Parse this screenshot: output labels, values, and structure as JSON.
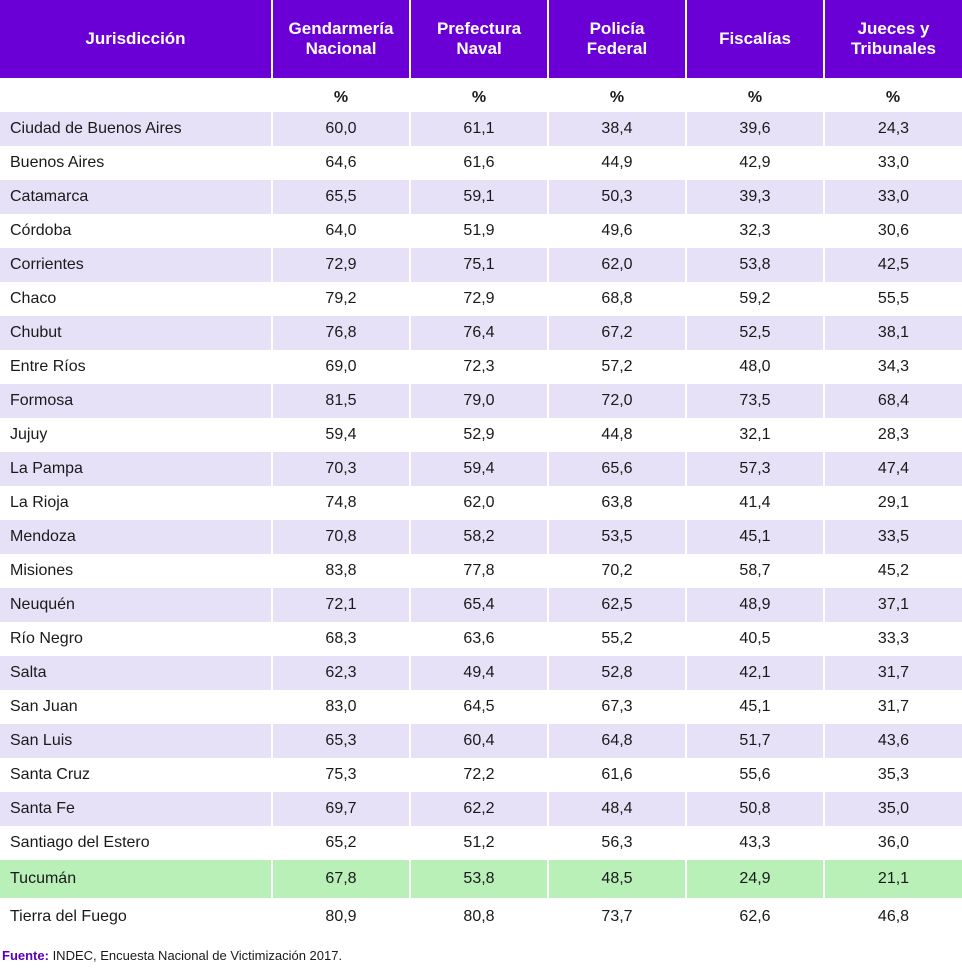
{
  "table": {
    "headers": [
      [
        "Jurisdicción"
      ],
      [
        "Gendarmería",
        "Nacional"
      ],
      [
        "Prefectura",
        "Naval"
      ],
      [
        "Policía",
        "Federal"
      ],
      [
        "Fiscalías"
      ],
      [
        "Jueces y",
        "Tribunales"
      ]
    ],
    "units": [
      "",
      "%",
      "%",
      "%",
      "%",
      "%"
    ],
    "rows": [
      {
        "name": "Ciudad de Buenos Aires",
        "values": [
          "60,0",
          "61,1",
          "38,4",
          "39,6",
          "24,3"
        ]
      },
      {
        "name": "Buenos Aires",
        "values": [
          "64,6",
          "61,6",
          "44,9",
          "42,9",
          "33,0"
        ]
      },
      {
        "name": "Catamarca",
        "values": [
          "65,5",
          "59,1",
          "50,3",
          "39,3",
          "33,0"
        ]
      },
      {
        "name": "Córdoba",
        "values": [
          "64,0",
          "51,9",
          "49,6",
          "32,3",
          "30,6"
        ]
      },
      {
        "name": "Corrientes",
        "values": [
          "72,9",
          "75,1",
          "62,0",
          "53,8",
          "42,5"
        ]
      },
      {
        "name": "Chaco",
        "values": [
          "79,2",
          "72,9",
          "68,8",
          "59,2",
          "55,5"
        ]
      },
      {
        "name": "Chubut",
        "values": [
          "76,8",
          "76,4",
          "67,2",
          "52,5",
          "38,1"
        ]
      },
      {
        "name": "Entre Ríos",
        "values": [
          "69,0",
          "72,3",
          "57,2",
          "48,0",
          "34,3"
        ]
      },
      {
        "name": "Formosa",
        "values": [
          "81,5",
          "79,0",
          "72,0",
          "73,5",
          "68,4"
        ]
      },
      {
        "name": "Jujuy",
        "values": [
          "59,4",
          "52,9",
          "44,8",
          "32,1",
          "28,3"
        ]
      },
      {
        "name": "La Pampa",
        "values": [
          "70,3",
          "59,4",
          "65,6",
          "57,3",
          "47,4"
        ]
      },
      {
        "name": "La Rioja",
        "values": [
          "74,8",
          "62,0",
          "63,8",
          "41,4",
          "29,1"
        ]
      },
      {
        "name": "Mendoza",
        "values": [
          "70,8",
          "58,2",
          "53,5",
          "45,1",
          "33,5"
        ]
      },
      {
        "name": "Misiones",
        "values": [
          "83,8",
          "77,8",
          "70,2",
          "58,7",
          "45,2"
        ]
      },
      {
        "name": "Neuquén",
        "values": [
          "72,1",
          "65,4",
          "62,5",
          "48,9",
          "37,1"
        ]
      },
      {
        "name": "Río Negro",
        "values": [
          "68,3",
          "63,6",
          "55,2",
          "40,5",
          "33,3"
        ]
      },
      {
        "name": "Salta",
        "values": [
          "62,3",
          "49,4",
          "52,8",
          "42,1",
          "31,7"
        ]
      },
      {
        "name": "San Juan",
        "values": [
          "83,0",
          "64,5",
          "67,3",
          "45,1",
          "31,7"
        ]
      },
      {
        "name": "San Luis",
        "values": [
          "65,3",
          "60,4",
          "64,8",
          "51,7",
          "43,6"
        ]
      },
      {
        "name": "Santa Cruz",
        "values": [
          "75,3",
          "72,2",
          "61,6",
          "55,6",
          "35,3"
        ]
      },
      {
        "name": "Santa Fe",
        "values": [
          "69,7",
          "62,2",
          "48,4",
          "50,8",
          "35,0"
        ]
      },
      {
        "name": "Santiago del Estero",
        "values": [
          "65,2",
          "51,2",
          "56,3",
          "43,3",
          "36,0"
        ]
      },
      {
        "name": "Tucumán",
        "values": [
          "67,8",
          "53,8",
          "48,5",
          "24,9",
          "21,1"
        ],
        "highlighted": true
      },
      {
        "name": "Tierra del Fuego",
        "values": [
          "80,9",
          "80,8",
          "73,7",
          "62,6",
          "46,8"
        ]
      }
    ]
  },
  "footnote": {
    "label": "Fuente:",
    "text": " INDEC, Encuesta Nacional de Victimización 2017."
  },
  "colors": {
    "header_bg": "#6b00d6",
    "stripe": "#e7e1f7",
    "highlight": "#b8f0b8",
    "footnote_label": "#5a00b8"
  }
}
